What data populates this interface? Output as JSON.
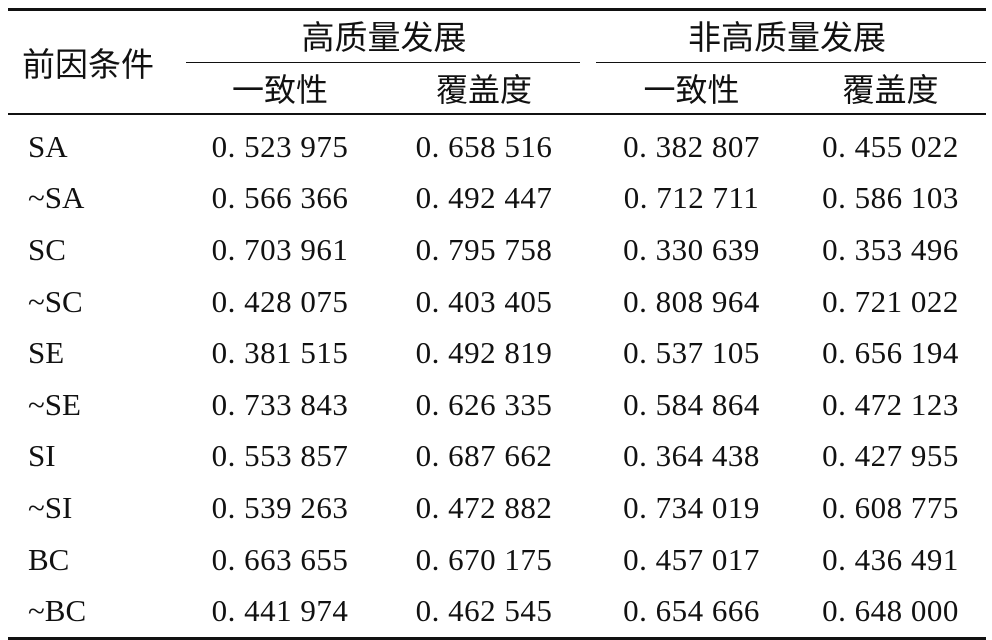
{
  "table": {
    "condition_header": "前因条件",
    "groups": [
      {
        "label": "高质量发展",
        "cols": [
          "一致性",
          "覆盖度"
        ]
      },
      {
        "label": "非高质量发展",
        "cols": [
          "一致性",
          "覆盖度"
        ]
      }
    ],
    "rows": [
      {
        "label": "SA",
        "values": [
          "0. 523 975",
          "0. 658 516",
          "0. 382 807",
          "0. 455 022"
        ]
      },
      {
        "label": "~SA",
        "values": [
          "0. 566 366",
          "0. 492 447",
          "0. 712 711",
          "0. 586 103"
        ]
      },
      {
        "label": "SC",
        "values": [
          "0. 703 961",
          "0. 795 758",
          "0. 330 639",
          "0. 353 496"
        ]
      },
      {
        "label": "~SC",
        "values": [
          "0. 428 075",
          "0. 403 405",
          "0. 808 964",
          "0. 721 022"
        ]
      },
      {
        "label": "SE",
        "values": [
          "0. 381 515",
          "0. 492 819",
          "0. 537 105",
          "0. 656 194"
        ]
      },
      {
        "label": "~SE",
        "values": [
          "0. 733 843",
          "0. 626 335",
          "0. 584 864",
          "0. 472 123"
        ]
      },
      {
        "label": "SI",
        "values": [
          "0. 553 857",
          "0. 687 662",
          "0. 364 438",
          "0. 427 955"
        ]
      },
      {
        "label": "~SI",
        "values": [
          "0. 539 263",
          "0. 472 882",
          "0. 734 019",
          "0. 608 775"
        ]
      },
      {
        "label": "BC",
        "values": [
          "0. 663 655",
          "0. 670 175",
          "0. 457 017",
          "0. 436 491"
        ]
      },
      {
        "label": "~BC",
        "values": [
          "0. 441 974",
          "0. 462 545",
          "0. 654 666",
          "0. 648 000"
        ]
      }
    ]
  }
}
